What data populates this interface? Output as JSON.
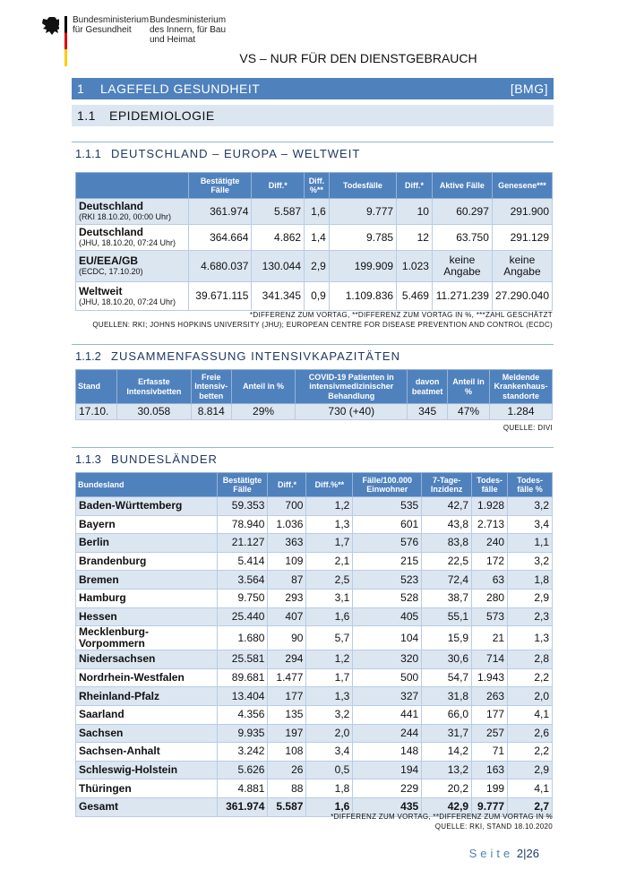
{
  "header": {
    "ministry1": [
      "Bundesministerium",
      "für Gesundheit"
    ],
    "ministry2": [
      "Bundesministerium",
      "des Innern, für Bau",
      "und Heimat"
    ],
    "classification": "VS – NUR FÜR DEN DIENSTGEBRAUCH"
  },
  "section1": {
    "num": "1",
    "title": "LAGEFELD GESUNDHEIT",
    "tag": "[BMG]"
  },
  "section11": {
    "num": "1.1",
    "title": "EPIDEMIOLOGIE"
  },
  "s111": {
    "num": "1.1.1",
    "title": "DEUTSCHLAND – EUROPA – WELTWEIT",
    "headers": [
      "",
      "Bestätigte Fälle",
      "Diff.*",
      "Diff. %**",
      "Todesfälle",
      "Diff.*",
      "Aktive Fälle",
      "Genesene***"
    ],
    "rows": [
      {
        "name": "Deutschland",
        "sub": "(RKI 18.10.20, 00:00 Uhr)",
        "cells": [
          "361.974",
          "5.587",
          "1,6",
          "9.777",
          "10",
          "60.297",
          "291.900"
        ]
      },
      {
        "name": "Deutschland",
        "sub": "(JHU, 18.10.20, 07:24 Uhr)",
        "cells": [
          "364.664",
          "4.862",
          "1,4",
          "9.785",
          "12",
          "63.750",
          "291.129"
        ]
      },
      {
        "name": "EU/EEA/GB",
        "sub": "(ECDC, 17.10.20)",
        "cells": [
          "4.680.037",
          "130.044",
          "2,9",
          "199.909",
          "1.023",
          "keine Angabe",
          "keine Angabe"
        ]
      },
      {
        "name": "Weltweit",
        "sub": "(JHU, 18.10.20, 07:24 Uhr)",
        "cells": [
          "39.671.115",
          "341.345",
          "0,9",
          "1.109.836",
          "5.469",
          "11.271.239",
          "27.290.040"
        ]
      }
    ],
    "notes": [
      "*DIFFERENZ ZUM VORTAG, **DIFFERENZ ZUM VORTAG IN %, ***ZAHL GESCHÄTZT",
      "QUELLEN: RKI; JOHNS HOPKINS UNIVERSITY (JHU); EUROPEAN CENTRE FOR DISEASE PREVENTION AND CONTROL (ECDC)"
    ]
  },
  "s112": {
    "num": "1.1.2",
    "title": "ZUSAMMENFASSUNG INTENSIVKAPAZITÄTEN",
    "headers": [
      "Stand",
      "Erfasste Intensivbetten",
      "Freie Intensiv-betten",
      "Anteil in %",
      "COVID-19 Patienten in intensivmedizinischer Behandlung",
      "davon beatmet",
      "Anteil in %",
      "Meldende Krankenhaus-standorte"
    ],
    "row": [
      "17.10.",
      "30.058",
      "8.814",
      "29%",
      "730 (+40)",
      "345",
      "47%",
      "1.284"
    ],
    "notes": [
      "QUELLE: DIVI"
    ]
  },
  "s113": {
    "num": "1.1.3",
    "title": "BUNDESLÄNDER",
    "headers": [
      "Bundesland",
      "Bestätigte Fälle",
      "Diff.*",
      "Diff.%**",
      "Fälle/100.000 Einwohner",
      "7-Tage-Inzidenz",
      "Todes-fälle",
      "Todes-fälle %"
    ],
    "rows": [
      [
        "Baden-Württemberg",
        "59.353",
        "700",
        "1,2",
        "535",
        "42,7",
        "1.928",
        "3,2"
      ],
      [
        "Bayern",
        "78.940",
        "1.036",
        "1,3",
        "601",
        "43,8",
        "2.713",
        "3,4"
      ],
      [
        "Berlin",
        "21.127",
        "363",
        "1,7",
        "576",
        "83,8",
        "240",
        "1,1"
      ],
      [
        "Brandenburg",
        "5.414",
        "109",
        "2,1",
        "215",
        "22,5",
        "172",
        "3,2"
      ],
      [
        "Bremen",
        "3.564",
        "87",
        "2,5",
        "523",
        "72,4",
        "63",
        "1,8"
      ],
      [
        "Hamburg",
        "9.750",
        "293",
        "3,1",
        "528",
        "38,7",
        "280",
        "2,9"
      ],
      [
        "Hessen",
        "25.440",
        "407",
        "1,6",
        "405",
        "55,1",
        "573",
        "2,3"
      ],
      [
        "Mecklenburg-Vorpommern",
        "1.680",
        "90",
        "5,7",
        "104",
        "15,9",
        "21",
        "1,3"
      ],
      [
        "Niedersachsen",
        "25.581",
        "294",
        "1,2",
        "320",
        "30,6",
        "714",
        "2,8"
      ],
      [
        "Nordrhein-Westfalen",
        "89.681",
        "1.477",
        "1,7",
        "500",
        "54,7",
        "1.943",
        "2,2"
      ],
      [
        "Rheinland-Pfalz",
        "13.404",
        "177",
        "1,3",
        "327",
        "31,8",
        "263",
        "2,0"
      ],
      [
        "Saarland",
        "4.356",
        "135",
        "3,2",
        "441",
        "66,0",
        "177",
        "4,1"
      ],
      [
        "Sachsen",
        "9.935",
        "197",
        "2,0",
        "244",
        "31,7",
        "257",
        "2,6"
      ],
      [
        "Sachsen-Anhalt",
        "3.242",
        "108",
        "3,4",
        "148",
        "14,2",
        "71",
        "2,2"
      ],
      [
        "Schleswig-Holstein",
        "5.626",
        "26",
        "0,5",
        "194",
        "13,2",
        "163",
        "2,9"
      ],
      [
        "Thüringen",
        "4.881",
        "88",
        "1,8",
        "229",
        "20,2",
        "199",
        "4,1"
      ]
    ],
    "total": [
      "Gesamt",
      "361.974",
      "5.587",
      "1,6",
      "435",
      "42,9",
      "9.777",
      "2,7"
    ],
    "notes": [
      "*DIFFERENZ ZUM VORTAG, **DIFFERENZ ZUM VORTAG IN %",
      "QUELLE: RKI, STAND 18.10.2020"
    ]
  },
  "footer": {
    "label": "Seite",
    "page": "2",
    "total": "26"
  }
}
